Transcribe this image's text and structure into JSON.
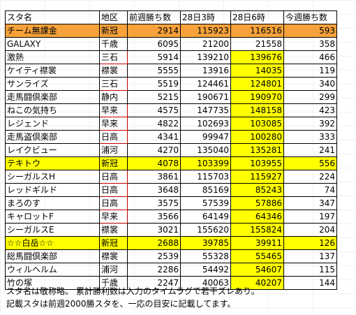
{
  "table": {
    "headers": [
      "スタ名",
      "地区",
      "前週勝ち数",
      "28日3時",
      "28日6時",
      "今週勝ち数"
    ],
    "rows": [
      {
        "name": "チーム無課金",
        "area": "新冠",
        "prev": "2914",
        "d3": "115923",
        "d6": "116516",
        "cur": "593"
      },
      {
        "name": "GALAXY",
        "area": "千歳",
        "prev": "6095",
        "d3": "21200",
        "d6": "21558",
        "cur": "358"
      },
      {
        "name": "激熱",
        "area": "三石",
        "prev": "5914",
        "d3": "139210",
        "d6": "139676",
        "cur": "466"
      },
      {
        "name": "ケイティ襟裳",
        "area": "襟裳",
        "prev": "5555",
        "d3": "13916",
        "d6": "14035",
        "cur": "119"
      },
      {
        "name": "サンライズ",
        "area": "三石",
        "prev": "5519",
        "d3": "124461",
        "d6": "124801",
        "cur": "340"
      },
      {
        "name": "走馬闘倶楽部",
        "area": "静内",
        "prev": "5215",
        "d3": "190671",
        "d6": "190970",
        "cur": "299"
      },
      {
        "name": "ねこの気持ち",
        "area": "早来",
        "prev": "4575",
        "d3": "147735",
        "d6": "148158",
        "cur": "423"
      },
      {
        "name": "レジェンド",
        "area": "早来",
        "prev": "4822",
        "d3": "102693",
        "d6": "103085",
        "cur": "392"
      },
      {
        "name": "走馬盗倶楽部",
        "area": "日高",
        "prev": "4341",
        "d3": "99947",
        "d6": "100280",
        "cur": "333"
      },
      {
        "name": "レイクビュー",
        "area": "浦河",
        "prev": "4270",
        "d3": "135040",
        "d6": "135281",
        "cur": "241"
      },
      {
        "name": "テキトウ",
        "area": "新冠",
        "prev": "4078",
        "d3": "103399",
        "d6": "103955",
        "cur": "556"
      },
      {
        "name": "シーガルスH",
        "area": "日高",
        "prev": "3861",
        "d3": "115703",
        "d6": "115927",
        "cur": "224"
      },
      {
        "name": "レッドギルド",
        "area": "日高",
        "prev": "3648",
        "d3": "85169",
        "d6": "85243",
        "cur": "74"
      },
      {
        "name": "まろのす",
        "area": "日高",
        "prev": "3575",
        "d3": "57539",
        "d6": "57886",
        "cur": "347"
      },
      {
        "name": "キャロットF",
        "area": "早来",
        "prev": "3566",
        "d3": "64149",
        "d6": "64346",
        "cur": "197"
      },
      {
        "name": "シーガルスE",
        "area": "襟裳",
        "prev": "3021",
        "d3": "155620",
        "d6": "155824",
        "cur": "204"
      },
      {
        "name": "☆☆白岳☆☆",
        "area": "新冠",
        "prev": "2688",
        "d3": "39785",
        "d6": "39911",
        "cur": "126"
      },
      {
        "name": "総馬闘倶楽部",
        "area": "襟裳",
        "prev": "2539",
        "d3": "55328",
        "d6": "55465",
        "cur": "137"
      },
      {
        "name": "ウィルヘルム",
        "area": "浦河",
        "prev": "2286",
        "d3": "54492",
        "d6": "54607",
        "cur": "115"
      },
      {
        "name": "竹の塚",
        "area": "千歳",
        "prev": "2247",
        "d3": "40063",
        "d6": "40207",
        "cur": "144"
      }
    ]
  },
  "notes": [
    "スタ名は敬称略。 累計勝利数は入力のタイムラグで若干ズレあり。",
    "記載スタは前週2000勝スタを、一応の目安に記載してます。"
  ],
  "colors": {
    "orange": "#f7a23b",
    "yellow": "#ffff00",
    "area_border": "#c00000"
  }
}
